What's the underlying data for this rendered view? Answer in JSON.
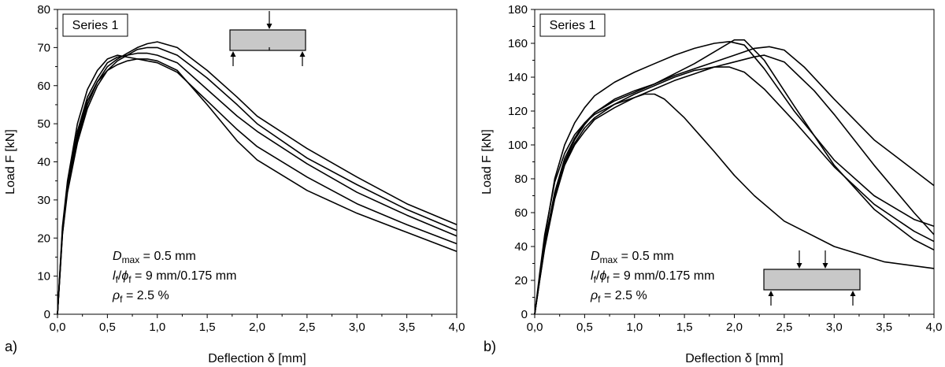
{
  "chart_data": [
    {
      "panel_label": "a)",
      "type": "line",
      "box_label": "Series 1",
      "xlabel": "Deflection δ [mm]",
      "ylabel": "Load F [kN]",
      "xlim": [
        0,
        4.0
      ],
      "ylim": [
        0,
        80
      ],
      "xticks": [
        "0,0",
        "0,5",
        "1,0",
        "1,5",
        "2,0",
        "2,5",
        "3,0",
        "3,5",
        "4,0"
      ],
      "yticks": [
        "0",
        "10",
        "20",
        "30",
        "40",
        "50",
        "60",
        "70",
        "80"
      ],
      "grid": false,
      "legend": "none",
      "test_setup": "three-point bending (single top load)",
      "annotations": {
        "dmax": {
          "symbol": "D",
          "sub": "max",
          "value": " = 0.5 mm"
        },
        "fiber": {
          "l": "l",
          "l_sub": "f",
          "slash": "/",
          "phi": "ϕ",
          "phi_sub": "f",
          "value": " = 9 mm/0.175 mm"
        },
        "rho": {
          "symbol": "ρ",
          "sub": "f",
          "value": " = 2.5 %"
        }
      },
      "series": [
        {
          "x": [
            0,
            0.05,
            0.1,
            0.2,
            0.3,
            0.4,
            0.5,
            0.6,
            0.7,
            0.8,
            0.9,
            1.0,
            1.2,
            1.5,
            1.8,
            2.0,
            2.5,
            3.0,
            3.5,
            4.0
          ],
          "y": [
            0,
            22,
            33,
            46,
            55,
            61,
            65,
            67,
            68.5,
            70,
            71,
            71.5,
            70,
            64,
            57,
            52,
            43.5,
            36,
            29,
            23.5
          ]
        },
        {
          "x": [
            0,
            0.05,
            0.1,
            0.2,
            0.3,
            0.4,
            0.5,
            0.6,
            0.7,
            0.8,
            0.9,
            1.0,
            1.2,
            1.5,
            1.8,
            2.0,
            2.5,
            3.0,
            3.5,
            4.0
          ],
          "y": [
            0,
            21,
            32,
            45,
            54,
            60,
            64,
            66.5,
            68,
            69.5,
            70,
            70,
            68,
            62,
            55,
            50,
            41,
            34,
            27.5,
            22
          ]
        },
        {
          "x": [
            0,
            0.05,
            0.1,
            0.2,
            0.3,
            0.4,
            0.5,
            0.6,
            0.7,
            0.8,
            0.9,
            1.0,
            1.2,
            1.5,
            1.8,
            2.0,
            2.5,
            3.0,
            3.5,
            4.0
          ],
          "y": [
            0,
            22,
            34,
            48,
            57,
            62,
            66,
            67.5,
            68,
            68.5,
            68.5,
            68,
            66,
            59,
            52,
            48,
            39.5,
            32,
            26,
            20.5
          ]
        },
        {
          "x": [
            0,
            0.05,
            0.1,
            0.2,
            0.3,
            0.4,
            0.5,
            0.6,
            0.7,
            0.8,
            0.9,
            1.0,
            1.2,
            1.5,
            1.8,
            2.0,
            2.5,
            3.0,
            3.5,
            4.0
          ],
          "y": [
            0,
            23,
            35,
            50,
            59,
            64,
            67,
            68,
            67.5,
            67,
            66.5,
            66,
            63.5,
            56,
            48.5,
            44,
            36,
            29,
            23.5,
            18.5
          ]
        },
        {
          "x": [
            0,
            0.05,
            0.1,
            0.2,
            0.3,
            0.4,
            0.5,
            0.6,
            0.7,
            0.8,
            0.9,
            1.0,
            1.2,
            1.5,
            1.8,
            2.0,
            2.5,
            3.0,
            3.5,
            4.0
          ],
          "y": [
            0,
            21,
            33,
            47,
            56,
            61,
            64,
            65.5,
            66.5,
            67,
            67,
            66.5,
            64,
            55,
            45.5,
            40.5,
            32.5,
            26.5,
            21.5,
            16.5
          ]
        }
      ]
    },
    {
      "panel_label": "b)",
      "type": "line",
      "box_label": "Series 1",
      "xlabel": "Deflection δ [mm]",
      "ylabel": "Load F [kN]",
      "xlim": [
        0,
        4.0
      ],
      "ylim": [
        0,
        180
      ],
      "xticks": [
        "0,0",
        "0,5",
        "1,0",
        "1,5",
        "2,0",
        "2,5",
        "3,0",
        "3,5",
        "4,0"
      ],
      "yticks": [
        "0",
        "20",
        "40",
        "60",
        "80",
        "100",
        "120",
        "140",
        "160",
        "180"
      ],
      "grid": false,
      "legend": "none",
      "test_setup": "four-point bending (two top loads)",
      "annotations": {
        "dmax": {
          "symbol": "D",
          "sub": "max",
          "value": " = 0.5 mm"
        },
        "fiber": {
          "l": "l",
          "l_sub": "f",
          "slash": "/",
          "phi": "ϕ",
          "phi_sub": "f",
          "value": " = 9 mm/0.175 mm"
        },
        "rho": {
          "symbol": "ρ",
          "sub": "f",
          "value": " = 2.5 %"
        }
      },
      "series": [
        {
          "x": [
            0,
            0.05,
            0.1,
            0.2,
            0.3,
            0.4,
            0.5,
            0.6,
            0.8,
            1.0,
            1.2,
            1.4,
            1.6,
            1.8,
            1.95,
            2.1,
            2.3,
            2.6,
            3.0,
            3.4,
            3.8,
            4.0
          ],
          "y": [
            0,
            22,
            45,
            80,
            100,
            113,
            122,
            129,
            137,
            143,
            148,
            153,
            157,
            160,
            161,
            159,
            145,
            120,
            91,
            70,
            56,
            52
          ]
        },
        {
          "x": [
            0,
            0.05,
            0.1,
            0.2,
            0.3,
            0.4,
            0.5,
            0.6,
            0.8,
            1.0,
            1.2,
            1.4,
            1.6,
            1.8,
            2.0,
            2.1,
            2.3,
            2.6,
            3.0,
            3.4,
            3.8,
            4.0
          ],
          "y": [
            0,
            20,
            40,
            70,
            90,
            103,
            112,
            119,
            126,
            131,
            136,
            142,
            148,
            155,
            162,
            162,
            150,
            123,
            88,
            62,
            44,
            38
          ]
        },
        {
          "x": [
            0,
            0.05,
            0.1,
            0.2,
            0.3,
            0.4,
            0.5,
            0.6,
            0.8,
            1.0,
            1.2,
            1.4,
            1.6,
            1.8,
            2.0,
            2.2,
            2.35,
            2.5,
            2.7,
            3.0,
            3.4,
            3.8,
            4.0
          ],
          "y": [
            0,
            21,
            42,
            72,
            92,
            104,
            113,
            119,
            127,
            132,
            136,
            141,
            145,
            149,
            153,
            157,
            158,
            156,
            146,
            127,
            103,
            85,
            76
          ]
        },
        {
          "x": [
            0,
            0.05,
            0.1,
            0.2,
            0.3,
            0.4,
            0.5,
            0.6,
            0.8,
            1.0,
            1.2,
            1.4,
            1.6,
            1.8,
            2.0,
            2.2,
            2.3,
            2.5,
            2.8,
            3.0,
            3.4,
            3.8,
            4.0
          ],
          "y": [
            0,
            20,
            39,
            68,
            88,
            100,
            108,
            115,
            122,
            128,
            133,
            138,
            142,
            146,
            149,
            152,
            153,
            149,
            132,
            118,
            88,
            60,
            47
          ]
        },
        {
          "x": [
            0,
            0.05,
            0.1,
            0.2,
            0.3,
            0.4,
            0.5,
            0.6,
            0.8,
            1.0,
            1.2,
            1.4,
            1.6,
            1.8,
            1.95,
            2.1,
            2.3,
            2.6,
            3.0,
            3.4,
            3.8,
            4.0
          ],
          "y": [
            0,
            21,
            41,
            70,
            89,
            101,
            110,
            116,
            124,
            130,
            135,
            140,
            144,
            146,
            146,
            143,
            133,
            114,
            87,
            65,
            49,
            43
          ]
        },
        {
          "x": [
            0,
            0.05,
            0.1,
            0.2,
            0.3,
            0.4,
            0.5,
            0.6,
            0.8,
            1.0,
            1.1,
            1.2,
            1.3,
            1.5,
            1.8,
            2.0,
            2.2,
            2.5,
            3.0,
            3.5,
            4.0
          ],
          "y": [
            0,
            24,
            47,
            78,
            95,
            106,
            113,
            118,
            124,
            128,
            130,
            130,
            127,
            116,
            96,
            82,
            70,
            55,
            40,
            31,
            27
          ]
        }
      ]
    }
  ]
}
